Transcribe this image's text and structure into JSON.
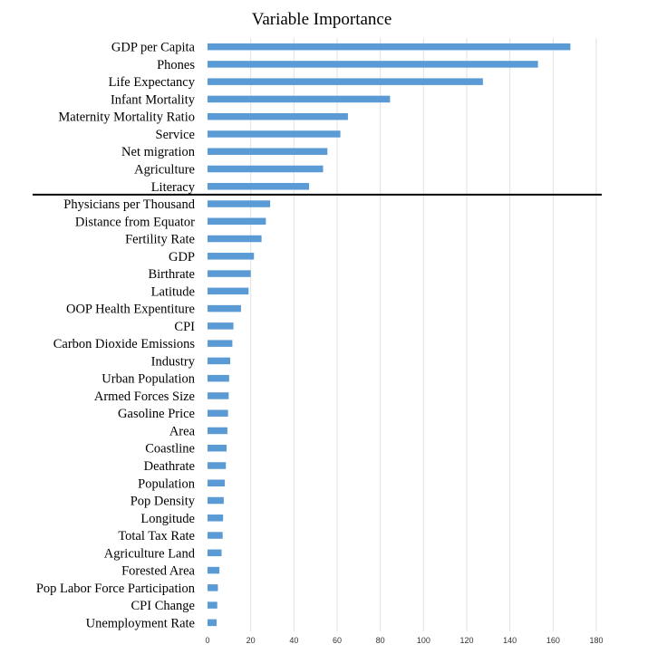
{
  "chart_data": {
    "type": "bar",
    "orientation": "horizontal",
    "title": "Variable Importance",
    "xlabel": "",
    "ylabel": "",
    "xlim": [
      0,
      180
    ],
    "xticks": [
      0,
      20,
      40,
      60,
      80,
      100,
      120,
      140,
      160,
      180
    ],
    "grid": true,
    "bar_color": "#5b9bd5",
    "separator_after": "Literacy",
    "categories": [
      "GDP per Capita",
      "Phones",
      "Life Expectancy",
      "Infant Mortality",
      "Maternity Mortality Ratio",
      "Service",
      "Net migration",
      "Agriculture",
      "Literacy",
      "Physicians per Thousand",
      "Distance from Equator",
      "Fertility Rate",
      "GDP",
      "Birthrate",
      "Latitude",
      "OOP Health Expentiture",
      "CPI",
      "Carbon Dioxide Emissions",
      "Industry",
      "Urban Population",
      "Armed Forces Size",
      "Gasoline Price",
      "Area",
      "Coastline",
      "Deathrate",
      "Population",
      "Pop Density",
      "Longitude",
      "Total Tax Rate",
      "Agriculture Land",
      "Forested Area",
      "Pop Labor Force Participation",
      "CPI Change",
      "Unemployment Rate"
    ],
    "values": [
      168,
      153,
      127.5,
      84.5,
      65,
      61.5,
      55.5,
      53.5,
      47,
      29,
      27,
      25,
      21.5,
      20,
      19,
      15.5,
      12,
      11.5,
      10.5,
      10,
      9.8,
      9.5,
      9.2,
      8.8,
      8.5,
      8,
      7.5,
      7.2,
      7,
      6.5,
      5.5,
      4.8,
      4.5,
      4.2
    ]
  }
}
